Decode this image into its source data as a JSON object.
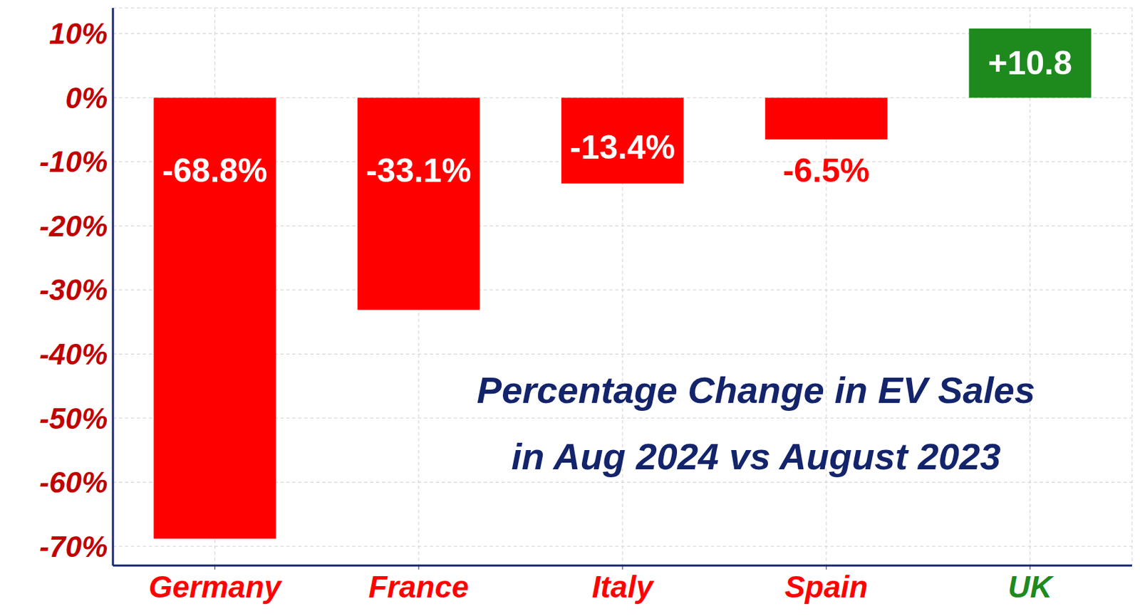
{
  "chart_data": {
    "type": "bar",
    "title": "Percentage Change in EV Sales",
    "subtitle": "in Aug 2024 vs August 2023",
    "categories": [
      "Germany",
      "France",
      "Italy",
      "Spain",
      "UK"
    ],
    "values": [
      -68.8,
      -33.1,
      -13.4,
      -6.5,
      10.8
    ],
    "value_labels": [
      "-68.8%",
      "-33.1%",
      "-13.4%",
      "-6.5%",
      "+10.8"
    ],
    "colors": [
      "#ff0000",
      "#ff0000",
      "#ff0000",
      "#ff0000",
      "#1e8a1e"
    ],
    "ylim": [
      -73,
      14
    ],
    "yticks": [
      {
        "value": -70,
        "label": "-70%"
      },
      {
        "value": -60,
        "label": "-60%"
      },
      {
        "value": -50,
        "label": "-50%"
      },
      {
        "value": -40,
        "label": "-40%"
      },
      {
        "value": -30,
        "label": "-30%"
      },
      {
        "value": -20,
        "label": "-20%"
      },
      {
        "value": -10,
        "label": "-10%"
      },
      {
        "value": 0,
        "label": "0%"
      },
      {
        "value": 10,
        "label": "10%"
      }
    ],
    "grid": true,
    "data_labels": true
  }
}
